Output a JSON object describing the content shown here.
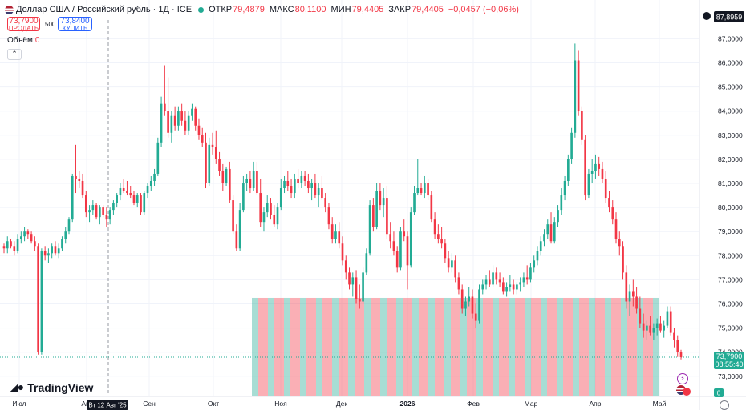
{
  "header": {
    "symbol": "Доллар США / Российский рубль · 1Д · ICE",
    "open_label": "ОТКР",
    "open": "79,4879",
    "high_label": "МАКС",
    "high": "80,1100",
    "low_label": "МИН",
    "low": "79,4405",
    "close_label": "ЗАКР",
    "close": "79,4405",
    "change": "−0,0457 (−0,06%)"
  },
  "trade": {
    "sell_price": "73,7900",
    "sell_label": "ПРОДАТЬ",
    "spread": "500",
    "buy_price": "73,8400",
    "buy_label": "КУПИТЬ"
  },
  "volume": {
    "label": "Объём",
    "value": "0"
  },
  "brand": "TradingView",
  "colors": {
    "up": "#22ab94",
    "down": "#f23645",
    "grid": "#f0f3fa",
    "axis_text": "#131722",
    "label_bg": "#131722"
  },
  "chart_data": {
    "type": "candlestick",
    "y_axis_ticks": [
      "87,0000",
      "86,0000",
      "85,0000",
      "84,0000",
      "83,0000",
      "82,0000",
      "81,0000",
      "80,0000",
      "79,0000",
      "78,0000",
      "77,0000",
      "76,0000",
      "75,0000",
      "74,0000",
      "73,0000"
    ],
    "ylim": [
      72.5,
      87.7
    ],
    "x_axis_ticks": [
      "Июл",
      "Авг",
      "Сен",
      "Окт",
      "Ноя",
      "Дек",
      "2026",
      "Фев",
      "Мар",
      "Апр",
      "Май"
    ],
    "crosshair_date": "Вт 12 Авг '25",
    "top_price_label": "87,8959",
    "last_price_label": "73,7900",
    "countdown": "08:55:40",
    "volume_label": "0",
    "candles": [
      [
        78.4,
        78.5,
        78.1,
        78.3
      ],
      [
        78.3,
        78.8,
        78.1,
        78.6
      ],
      [
        78.6,
        78.7,
        78.3,
        78.4
      ],
      [
        78.4,
        78.6,
        78.0,
        78.2
      ],
      [
        78.2,
        78.9,
        78.1,
        78.7
      ],
      [
        78.7,
        79.0,
        78.5,
        78.8
      ],
      [
        78.8,
        79.2,
        78.6,
        79.0
      ],
      [
        79.0,
        79.1,
        78.7,
        78.9
      ],
      [
        78.9,
        79.0,
        78.5,
        78.6
      ],
      [
        78.6,
        78.8,
        78.2,
        78.4
      ],
      [
        78.4,
        78.5,
        73.9,
        74.0
      ],
      [
        74.0,
        78.3,
        73.9,
        78.2
      ],
      [
        78.2,
        78.4,
        77.8,
        78.0
      ],
      [
        78.0,
        78.3,
        77.7,
        78.1
      ],
      [
        78.1,
        78.5,
        77.9,
        78.4
      ],
      [
        78.4,
        78.6,
        78.0,
        78.1
      ],
      [
        78.1,
        78.5,
        77.9,
        78.3
      ],
      [
        78.3,
        78.8,
        78.2,
        78.7
      ],
      [
        78.7,
        79.2,
        78.5,
        79.0
      ],
      [
        79.0,
        79.6,
        78.9,
        79.5
      ],
      [
        79.5,
        81.4,
        79.4,
        81.3
      ],
      [
        81.3,
        82.6,
        80.6,
        81.2
      ],
      [
        81.2,
        81.5,
        80.8,
        81.1
      ],
      [
        81.1,
        81.4,
        80.4,
        80.5
      ],
      [
        80.5,
        80.7,
        79.6,
        79.8
      ],
      [
        79.8,
        80.1,
        79.4,
        79.9
      ],
      [
        79.9,
        80.3,
        79.7,
        80.1
      ],
      [
        80.1,
        80.2,
        79.5,
        79.6
      ],
      [
        79.6,
        80.1,
        79.3,
        80.0
      ],
      [
        80.0,
        80.1,
        79.6,
        79.7
      ],
      [
        79.7,
        80.0,
        79.2,
        79.5
      ],
      [
        79.5,
        80.0,
        79.3,
        79.9
      ],
      [
        79.9,
        80.3,
        79.7,
        80.2
      ],
      [
        80.2,
        80.6,
        80.0,
        80.5
      ],
      [
        80.5,
        81.0,
        80.3,
        80.8
      ],
      [
        80.8,
        81.2,
        80.6,
        80.7
      ],
      [
        80.7,
        81.1,
        80.5,
        80.6
      ],
      [
        80.6,
        80.9,
        80.4,
        80.5
      ],
      [
        80.5,
        80.7,
        80.1,
        80.2
      ],
      [
        80.2,
        80.6,
        80.0,
        80.5
      ],
      [
        80.5,
        80.6,
        79.7,
        79.8
      ],
      [
        79.8,
        80.7,
        79.7,
        80.6
      ],
      [
        80.6,
        81.0,
        80.4,
        80.9
      ],
      [
        80.9,
        81.3,
        80.7,
        81.1
      ],
      [
        81.1,
        81.6,
        80.9,
        81.4
      ],
      [
        81.4,
        82.9,
        81.3,
        82.7
      ],
      [
        82.7,
        84.6,
        82.5,
        84.3
      ],
      [
        84.3,
        85.9,
        83.8,
        84.0
      ],
      [
        84.0,
        85.4,
        82.9,
        83.1
      ],
      [
        83.1,
        84.0,
        82.7,
        83.8
      ],
      [
        83.8,
        84.2,
        83.2,
        83.4
      ],
      [
        83.4,
        84.2,
        83.2,
        84.0
      ],
      [
        84.0,
        84.3,
        83.4,
        83.6
      ],
      [
        83.6,
        84.0,
        83.0,
        83.2
      ],
      [
        83.2,
        84.0,
        83.0,
        83.8
      ],
      [
        83.8,
        84.3,
        83.6,
        84.1
      ],
      [
        84.1,
        84.2,
        83.2,
        83.4
      ],
      [
        83.4,
        83.7,
        82.8,
        83.0
      ],
      [
        83.0,
        83.3,
        82.5,
        82.7
      ],
      [
        82.7,
        83.1,
        80.8,
        81.0
      ],
      [
        81.0,
        82.9,
        80.9,
        82.6
      ],
      [
        82.6,
        83.1,
        82.2,
        82.5
      ],
      [
        82.5,
        83.2,
        81.8,
        82.0
      ],
      [
        82.0,
        82.3,
        81.3,
        81.5
      ],
      [
        81.5,
        81.8,
        80.7,
        81.0
      ],
      [
        81.0,
        81.7,
        80.9,
        81.6
      ],
      [
        81.6,
        81.9,
        80.2,
        80.3
      ],
      [
        80.3,
        80.5,
        78.9,
        79.0
      ],
      [
        79.0,
        79.3,
        78.2,
        78.3
      ],
      [
        78.3,
        80.2,
        78.2,
        79.9
      ],
      [
        79.9,
        81.3,
        79.8,
        81.0
      ],
      [
        81.0,
        81.4,
        80.7,
        81.2
      ],
      [
        81.2,
        81.5,
        80.6,
        80.8
      ],
      [
        80.8,
        81.9,
        80.7,
        81.5
      ],
      [
        81.5,
        81.9,
        80.5,
        80.6
      ],
      [
        80.6,
        81.2,
        79.2,
        79.4
      ],
      [
        79.4,
        80.0,
        79.0,
        79.8
      ],
      [
        79.8,
        80.5,
        79.6,
        80.2
      ],
      [
        80.2,
        80.4,
        79.5,
        79.7
      ],
      [
        79.7,
        80.1,
        79.2,
        79.3
      ],
      [
        79.3,
        80.2,
        79.1,
        80.0
      ],
      [
        80.0,
        81.2,
        79.9,
        80.8
      ],
      [
        80.8,
        81.3,
        80.6,
        81.1
      ],
      [
        81.1,
        81.5,
        80.7,
        80.9
      ],
      [
        80.9,
        81.2,
        80.4,
        80.6
      ],
      [
        80.6,
        81.4,
        80.4,
        81.2
      ],
      [
        81.2,
        81.6,
        80.8,
        81.0
      ],
      [
        81.0,
        81.5,
        80.8,
        81.3
      ],
      [
        81.3,
        81.5,
        80.9,
        81.1
      ],
      [
        81.1,
        81.4,
        80.6,
        80.8
      ],
      [
        80.8,
        81.2,
        80.3,
        81.0
      ],
      [
        81.0,
        81.4,
        80.4,
        80.5
      ],
      [
        80.5,
        81.0,
        80.0,
        80.8
      ],
      [
        80.8,
        81.3,
        80.3,
        80.4
      ],
      [
        80.4,
        80.6,
        79.8,
        80.0
      ],
      [
        80.0,
        80.2,
        79.1,
        79.3
      ],
      [
        79.3,
        79.6,
        78.5,
        78.7
      ],
      [
        78.7,
        79.3,
        78.5,
        79.0
      ],
      [
        79.0,
        79.4,
        78.3,
        78.5
      ],
      [
        78.5,
        78.8,
        77.6,
        77.8
      ],
      [
        77.8,
        78.0,
        77.0,
        77.3
      ],
      [
        77.3,
        77.5,
        76.6,
        76.8
      ],
      [
        76.8,
        77.3,
        76.3,
        77.1
      ],
      [
        77.1,
        77.4,
        76.0,
        76.2
      ],
      [
        76.2,
        76.8,
        75.8,
        76.1
      ],
      [
        76.1,
        77.5,
        76.0,
        77.3
      ],
      [
        77.3,
        78.3,
        77.2,
        78.1
      ],
      [
        78.1,
        80.3,
        78.0,
        80.1
      ],
      [
        80.1,
        80.4,
        79.0,
        79.2
      ],
      [
        79.2,
        81.0,
        79.1,
        80.7
      ],
      [
        80.7,
        81.0,
        79.9,
        80.1
      ],
      [
        80.1,
        80.8,
        79.6,
        80.4
      ],
      [
        80.4,
        80.9,
        78.7,
        78.9
      ],
      [
        78.9,
        79.4,
        78.3,
        78.6
      ],
      [
        78.6,
        79.0,
        78.0,
        78.2
      ],
      [
        78.2,
        78.4,
        77.3,
        77.5
      ],
      [
        77.5,
        79.2,
        77.4,
        79.0
      ],
      [
        79.0,
        79.5,
        78.6,
        78.8
      ],
      [
        78.8,
        79.0,
        76.6,
        77.6
      ],
      [
        77.6,
        80.0,
        77.5,
        79.8
      ],
      [
        79.8,
        80.9,
        79.7,
        80.6
      ],
      [
        80.6,
        82.0,
        80.5,
        80.8
      ],
      [
        80.8,
        81.0,
        80.5,
        80.6
      ],
      [
        80.6,
        81.3,
        80.4,
        81.0
      ],
      [
        81.0,
        81.2,
        80.3,
        80.5
      ],
      [
        80.5,
        80.7,
        79.4,
        79.5
      ],
      [
        79.5,
        79.8,
        78.7,
        78.9
      ],
      [
        78.9,
        79.3,
        78.5,
        78.7
      ],
      [
        78.7,
        79.2,
        78.3,
        78.5
      ],
      [
        78.5,
        78.7,
        77.7,
        77.9
      ],
      [
        77.9,
        78.2,
        77.3,
        77.5
      ],
      [
        77.5,
        78.1,
        77.3,
        77.8
      ],
      [
        77.8,
        78.0,
        76.9,
        77.1
      ],
      [
        77.1,
        77.3,
        76.4,
        76.6
      ],
      [
        76.6,
        76.8,
        75.6,
        75.8
      ],
      [
        75.8,
        76.3,
        75.5,
        76.1
      ],
      [
        76.1,
        76.7,
        75.9,
        76.3
      ],
      [
        76.3,
        76.6,
        75.4,
        75.6
      ],
      [
        75.6,
        76.0,
        75.0,
        75.3
      ],
      [
        75.3,
        76.8,
        75.2,
        76.6
      ],
      [
        76.6,
        77.0,
        76.4,
        76.8
      ],
      [
        76.8,
        77.2,
        76.6,
        77.0
      ],
      [
        77.0,
        77.4,
        76.7,
        76.8
      ],
      [
        76.8,
        77.6,
        76.7,
        77.3
      ],
      [
        77.3,
        77.5,
        76.8,
        77.0
      ],
      [
        77.0,
        77.3,
        76.7,
        76.9
      ],
      [
        76.9,
        77.1,
        76.4,
        76.5
      ],
      [
        76.5,
        76.9,
        76.3,
        76.7
      ],
      [
        76.7,
        77.2,
        76.5,
        76.8
      ],
      [
        76.8,
        77.0,
        76.4,
        76.6
      ],
      [
        76.6,
        76.9,
        76.4,
        76.8
      ],
      [
        76.8,
        77.1,
        76.5,
        76.9
      ],
      [
        76.9,
        77.3,
        76.7,
        77.1
      ],
      [
        77.1,
        77.6,
        76.8,
        77.0
      ],
      [
        77.0,
        77.7,
        76.9,
        77.5
      ],
      [
        77.5,
        78.0,
        77.3,
        77.8
      ],
      [
        77.8,
        78.4,
        77.6,
        78.2
      ],
      [
        78.2,
        78.8,
        78.0,
        78.6
      ],
      [
        78.6,
        79.1,
        78.4,
        78.9
      ],
      [
        78.9,
        79.5,
        78.7,
        79.3
      ],
      [
        79.3,
        79.8,
        78.5,
        78.6
      ],
      [
        78.6,
        79.6,
        78.5,
        79.4
      ],
      [
        79.4,
        80.1,
        79.2,
        79.9
      ],
      [
        79.9,
        80.8,
        79.7,
        80.5
      ],
      [
        80.5,
        81.3,
        80.3,
        81.1
      ],
      [
        81.1,
        82.2,
        80.9,
        82.0
      ],
      [
        82.0,
        83.3,
        81.8,
        83.1
      ],
      [
        83.1,
        86.8,
        82.9,
        86.1
      ],
      [
        86.1,
        86.5,
        83.8,
        84.0
      ],
      [
        84.0,
        84.2,
        82.6,
        82.8
      ],
      [
        82.8,
        83.0,
        80.3,
        80.5
      ],
      [
        80.5,
        81.6,
        80.4,
        81.4
      ],
      [
        81.4,
        82.0,
        81.0,
        81.5
      ],
      [
        81.5,
        82.2,
        81.2,
        81.8
      ],
      [
        81.8,
        82.1,
        81.3,
        81.6
      ],
      [
        81.6,
        81.9,
        81.0,
        81.2
      ],
      [
        81.2,
        81.5,
        80.2,
        80.4
      ],
      [
        80.4,
        80.7,
        79.8,
        80.0
      ],
      [
        80.0,
        80.3,
        79.3,
        79.5
      ],
      [
        79.5,
        79.8,
        78.5,
        78.7
      ],
      [
        78.7,
        79.0,
        78.0,
        78.4
      ],
      [
        78.4,
        78.6,
        77.0,
        77.3
      ],
      [
        77.3,
        77.6,
        75.8,
        76.1
      ],
      [
        76.1,
        76.8,
        75.5,
        76.5
      ],
      [
        76.5,
        77.0,
        75.9,
        76.3
      ],
      [
        76.3,
        76.7,
        75.6,
        75.8
      ],
      [
        75.8,
        76.3,
        75.0,
        75.2
      ],
      [
        75.2,
        75.6,
        74.6,
        74.9
      ],
      [
        74.9,
        75.3,
        74.5,
        75.1
      ],
      [
        75.1,
        75.5,
        74.7,
        74.8
      ],
      [
        74.8,
        75.2,
        74.5,
        75.0
      ],
      [
        75.0,
        75.4,
        74.7,
        75.2
      ],
      [
        75.2,
        75.5,
        74.8,
        74.9
      ],
      [
        74.9,
        75.3,
        74.6,
        75.1
      ],
      [
        75.1,
        75.9,
        75.0,
        75.7
      ],
      [
        75.7,
        75.9,
        74.7,
        74.8
      ],
      [
        74.8,
        75.0,
        74.2,
        74.5
      ],
      [
        74.5,
        74.7,
        73.8,
        74.0
      ],
      [
        74.0,
        74.1,
        73.7,
        73.79
      ]
    ]
  }
}
